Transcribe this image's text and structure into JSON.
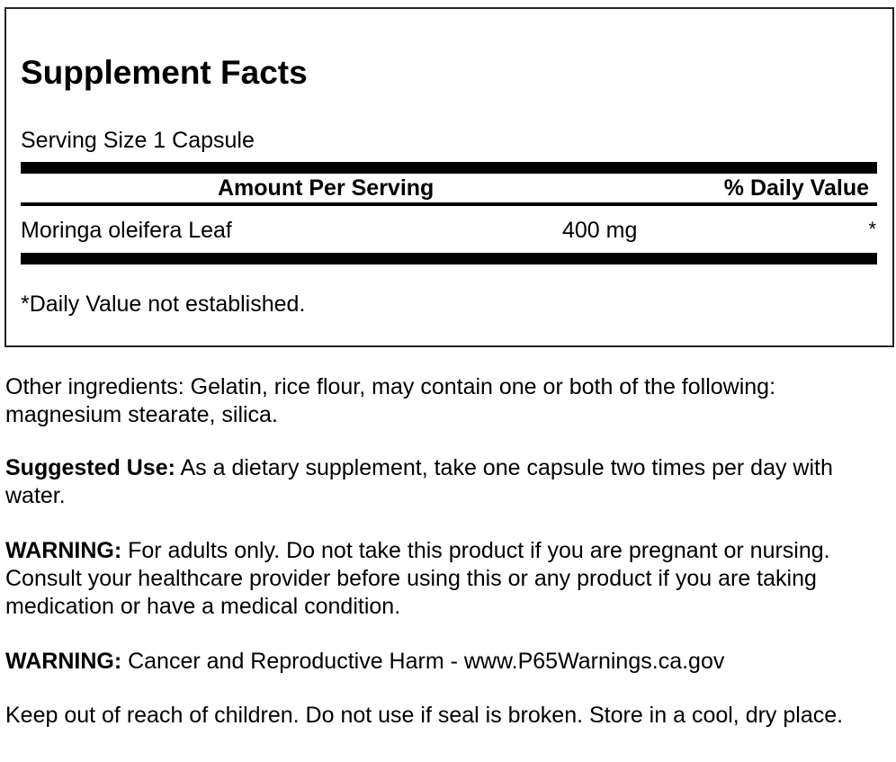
{
  "facts": {
    "title": "Supplement Facts",
    "serving_size": "Serving Size 1 Capsule",
    "header_amount": "Amount Per Serving",
    "header_dv": "% Daily Value",
    "rows": [
      {
        "name": "Moringa oleifera Leaf",
        "amount": "400 mg",
        "dv": "*"
      }
    ],
    "footnote": "*Daily Value not established."
  },
  "paragraphs": {
    "other": {
      "label": "",
      "text": "Other ingredients: Gelatin, rice flour, may contain one or both of the following: magnesium stearate, silica."
    },
    "use": {
      "label": "Suggested Use:",
      "text": " As a dietary supplement, take one capsule two times per day with water."
    },
    "warning1": {
      "label": "WARNING:",
      "text": " For adults only. Do not take this product if you are pregnant or nursing. Consult your healthcare provider before using this or any product if you are taking medication or have a medical condition."
    },
    "warning2": {
      "label": "WARNING:",
      "text": " Cancer and Reproductive Harm - www.P65Warnings.ca.gov"
    },
    "storage": {
      "label": "",
      "text": "Keep out of reach of children. Do not use if seal is broken. Store in a cool, dry place."
    }
  }
}
